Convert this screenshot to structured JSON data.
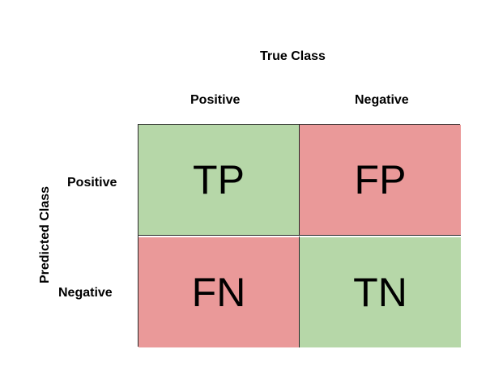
{
  "titles": {
    "true_class": "True Class",
    "predicted_class": "Predicted Class"
  },
  "columns": {
    "positive": "Positive",
    "negative": "Negative"
  },
  "rows": {
    "positive": "Positive",
    "negative": "Negative"
  },
  "cells": {
    "tp": {
      "label": "TP",
      "color": "#b6d7a8"
    },
    "fp": {
      "label": "FP",
      "color": "#ea9999"
    },
    "fn": {
      "label": "FN",
      "color": "#ea9999"
    },
    "tn": {
      "label": "TN",
      "color": "#b6d7a8"
    }
  }
}
